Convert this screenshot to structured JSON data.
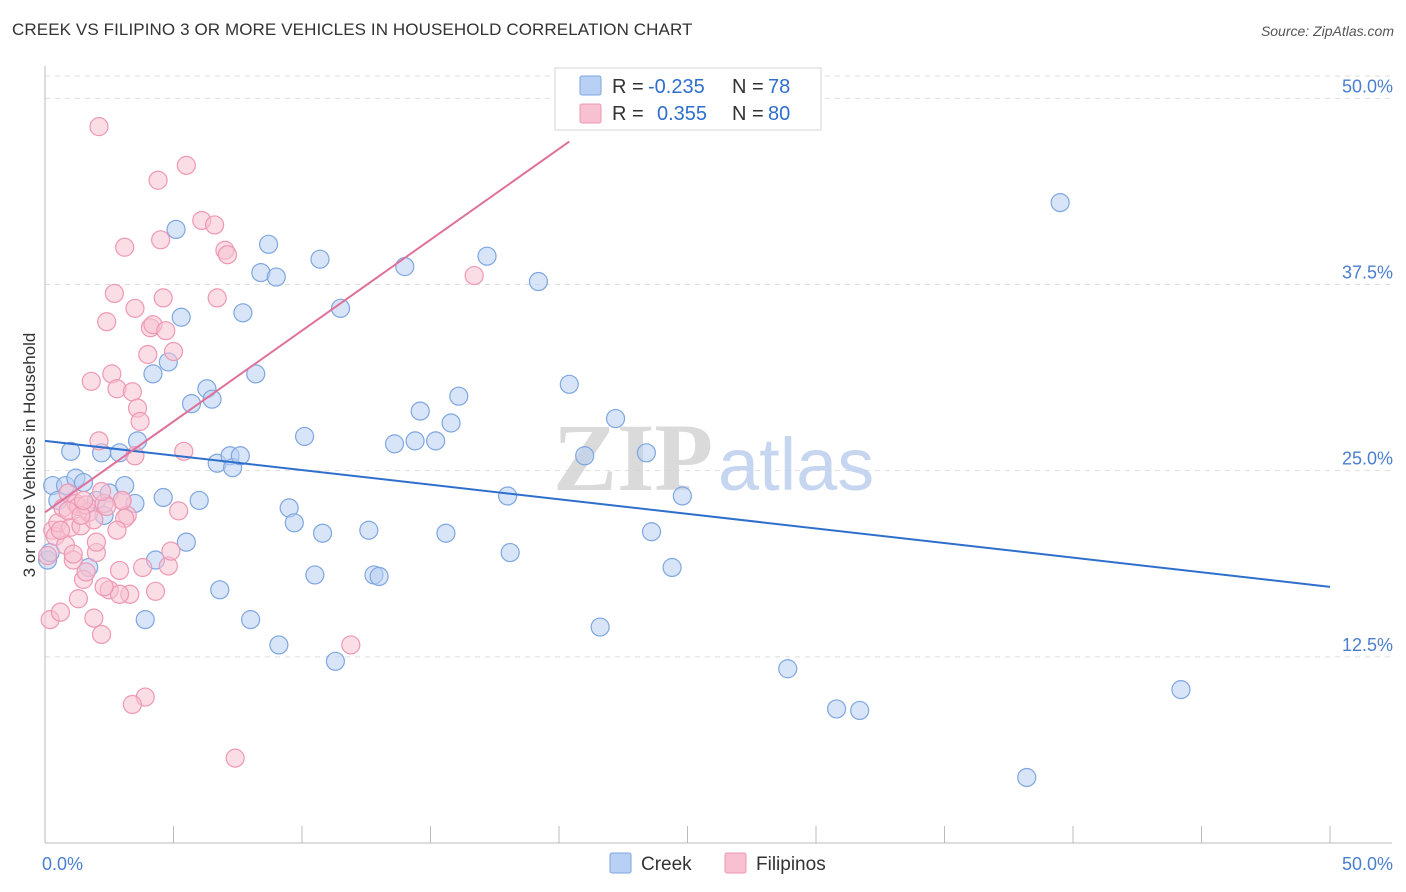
{
  "header": {
    "title": "CREEK VS FILIPINO 3 OR MORE VEHICLES IN HOUSEHOLD CORRELATION CHART",
    "source": "Source: ZipAtlas.com"
  },
  "watermark": {
    "zip": "ZIP",
    "atlas": "atlas"
  },
  "colors": {
    "creek_fill": "#b8d0f3",
    "creek_stroke": "#7ea6e0",
    "creek_line": "#2f6fcc",
    "filipino_fill": "#f7c1d1",
    "filipino_stroke": "#ee98b3",
    "filipino_line": "#e0709a",
    "value_text": "#2f6fcc",
    "grid": "#dddddd"
  },
  "legend": {
    "rows": [
      {
        "r_label": "R =",
        "r_value": "-0.235",
        "n_label": "N =",
        "n_value": "78"
      },
      {
        "r_label": "R =",
        "r_value": "0.355",
        "n_label": "N =",
        "n_value": "80"
      }
    ]
  },
  "chart_data": {
    "type": "scatter",
    "title": "CREEK VS FILIPINO 3 OR MORE VEHICLES IN HOUSEHOLD CORRELATION CHART",
    "xlabel": "",
    "ylabel": "3 or more Vehicles in Household",
    "xlim": [
      0,
      50
    ],
    "ylim": [
      0,
      51.5
    ],
    "x_tick_labels": [
      {
        "value": 0,
        "label": "0.0%"
      },
      {
        "value": 50,
        "label": "50.0%"
      }
    ],
    "y_tick_labels": [
      {
        "value": 12.5,
        "label": "12.5%"
      },
      {
        "value": 25.0,
        "label": "25.0%"
      },
      {
        "value": 37.5,
        "label": "37.5%"
      },
      {
        "value": 50.0,
        "label": "50.0%"
      }
    ],
    "grid": true,
    "legend": [
      "Creek",
      "Filipinos"
    ],
    "series": [
      {
        "name": "Creek",
        "trend": {
          "x": [
            0,
            50
          ],
          "y": [
            27.0,
            17.2
          ]
        },
        "points": [
          [
            0.1,
            19.0
          ],
          [
            0.2,
            19.5
          ],
          [
            0.3,
            24.0
          ],
          [
            0.5,
            23.0
          ],
          [
            0.8,
            24.0
          ],
          [
            1.0,
            26.3
          ],
          [
            1.2,
            24.5
          ],
          [
            1.5,
            24.2
          ],
          [
            1.7,
            18.5
          ],
          [
            2.0,
            23.0
          ],
          [
            2.2,
            26.2
          ],
          [
            2.3,
            22.0
          ],
          [
            2.5,
            23.5
          ],
          [
            2.9,
            26.2
          ],
          [
            3.1,
            24.0
          ],
          [
            3.5,
            22.8
          ],
          [
            3.6,
            27.0
          ],
          [
            3.9,
            15.0
          ],
          [
            4.2,
            31.5
          ],
          [
            4.3,
            19.0
          ],
          [
            4.6,
            23.2
          ],
          [
            4.8,
            32.3
          ],
          [
            5.1,
            41.2
          ],
          [
            5.3,
            35.3
          ],
          [
            5.5,
            20.2
          ],
          [
            5.7,
            29.5
          ],
          [
            6.0,
            23.0
          ],
          [
            6.3,
            30.5
          ],
          [
            6.5,
            29.8
          ],
          [
            6.7,
            25.5
          ],
          [
            6.8,
            17.0
          ],
          [
            7.2,
            26.0
          ],
          [
            7.3,
            25.2
          ],
          [
            7.6,
            26.0
          ],
          [
            7.7,
            35.6
          ],
          [
            8.0,
            15.0
          ],
          [
            8.2,
            31.5
          ],
          [
            8.4,
            38.3
          ],
          [
            8.7,
            40.2
          ],
          [
            9.0,
            38.0
          ],
          [
            9.1,
            13.3
          ],
          [
            9.5,
            22.5
          ],
          [
            9.7,
            21.5
          ],
          [
            10.1,
            27.3
          ],
          [
            10.5,
            18.0
          ],
          [
            10.7,
            39.2
          ],
          [
            10.8,
            20.8
          ],
          [
            11.3,
            12.2
          ],
          [
            11.5,
            35.9
          ],
          [
            12.6,
            21.0
          ],
          [
            12.8,
            18.0
          ],
          [
            13.0,
            17.9
          ],
          [
            13.6,
            26.8
          ],
          [
            14.0,
            38.7
          ],
          [
            14.4,
            27.0
          ],
          [
            14.6,
            29.0
          ],
          [
            15.2,
            27.0
          ],
          [
            15.6,
            20.8
          ],
          [
            15.8,
            28.2
          ],
          [
            16.1,
            30.0
          ],
          [
            17.2,
            39.4
          ],
          [
            18.0,
            23.3
          ],
          [
            18.1,
            19.5
          ],
          [
            19.2,
            37.7
          ],
          [
            20.4,
            30.8
          ],
          [
            21.0,
            26.0
          ],
          [
            21.6,
            14.5
          ],
          [
            22.2,
            28.5
          ],
          [
            23.4,
            26.2
          ],
          [
            23.6,
            20.9
          ],
          [
            24.4,
            18.5
          ],
          [
            24.8,
            23.3
          ],
          [
            28.9,
            11.7
          ],
          [
            30.8,
            9.0
          ],
          [
            31.7,
            8.9
          ],
          [
            39.5,
            43.0
          ],
          [
            44.2,
            10.3
          ],
          [
            38.2,
            4.4
          ]
        ]
      },
      {
        "name": "Filipinos",
        "trend": {
          "x": [
            0,
            20.4
          ],
          "y": [
            22.2,
            47.1
          ]
        },
        "points": [
          [
            0.1,
            19.3
          ],
          [
            0.2,
            15.0
          ],
          [
            0.3,
            21.0
          ],
          [
            0.4,
            20.6
          ],
          [
            0.5,
            21.5
          ],
          [
            0.6,
            15.5
          ],
          [
            0.7,
            22.5
          ],
          [
            0.8,
            20.0
          ],
          [
            0.9,
            23.5
          ],
          [
            1.0,
            21.2
          ],
          [
            1.1,
            19.0
          ],
          [
            1.2,
            22.8
          ],
          [
            1.3,
            22.6
          ],
          [
            1.4,
            21.3
          ],
          [
            1.5,
            17.7
          ],
          [
            1.6,
            18.2
          ],
          [
            1.7,
            22.2
          ],
          [
            1.8,
            31.0
          ],
          [
            1.9,
            15.1
          ],
          [
            2.0,
            19.5
          ],
          [
            2.1,
            27.0
          ],
          [
            2.2,
            14.0
          ],
          [
            2.3,
            22.8
          ],
          [
            2.4,
            35.0
          ],
          [
            2.5,
            17.0
          ],
          [
            2.6,
            31.5
          ],
          [
            2.7,
            36.9
          ],
          [
            2.8,
            30.5
          ],
          [
            2.9,
            18.3
          ],
          [
            3.0,
            23.0
          ],
          [
            3.1,
            40.0
          ],
          [
            3.2,
            22.0
          ],
          [
            3.3,
            16.7
          ],
          [
            3.4,
            30.3
          ],
          [
            3.5,
            35.9
          ],
          [
            3.6,
            29.2
          ],
          [
            3.7,
            28.3
          ],
          [
            3.8,
            18.5
          ],
          [
            3.9,
            9.8
          ],
          [
            4.0,
            32.8
          ],
          [
            4.1,
            34.6
          ],
          [
            4.2,
            34.8
          ],
          [
            4.3,
            16.9
          ],
          [
            4.4,
            44.5
          ],
          [
            4.5,
            40.5
          ],
          [
            4.6,
            36.6
          ],
          [
            4.7,
            34.4
          ],
          [
            4.8,
            18.6
          ],
          [
            4.9,
            19.6
          ],
          [
            5.0,
            33.0
          ],
          [
            5.2,
            22.3
          ],
          [
            5.4,
            26.3
          ],
          [
            5.5,
            45.5
          ],
          [
            6.1,
            41.8
          ],
          [
            6.6,
            41.5
          ],
          [
            6.7,
            36.6
          ],
          [
            7.0,
            39.8
          ],
          [
            7.1,
            39.5
          ],
          [
            7.4,
            5.7
          ],
          [
            11.9,
            13.3
          ],
          [
            16.7,
            38.1
          ],
          [
            2.1,
            48.1
          ],
          [
            3.4,
            9.3
          ],
          [
            2.9,
            16.7
          ],
          [
            1.3,
            16.4
          ],
          [
            2.3,
            17.2
          ],
          [
            3.0,
            23.0
          ],
          [
            2.4,
            22.6
          ],
          [
            1.6,
            22.7
          ],
          [
            1.9,
            21.7
          ],
          [
            0.9,
            22.3
          ],
          [
            1.1,
            19.4
          ],
          [
            2.0,
            20.2
          ],
          [
            3.1,
            21.8
          ],
          [
            2.2,
            23.6
          ],
          [
            3.5,
            26.0
          ],
          [
            1.4,
            22.0
          ],
          [
            0.6,
            21.0
          ],
          [
            1.5,
            23.0
          ],
          [
            2.8,
            21.0
          ]
        ]
      }
    ]
  }
}
